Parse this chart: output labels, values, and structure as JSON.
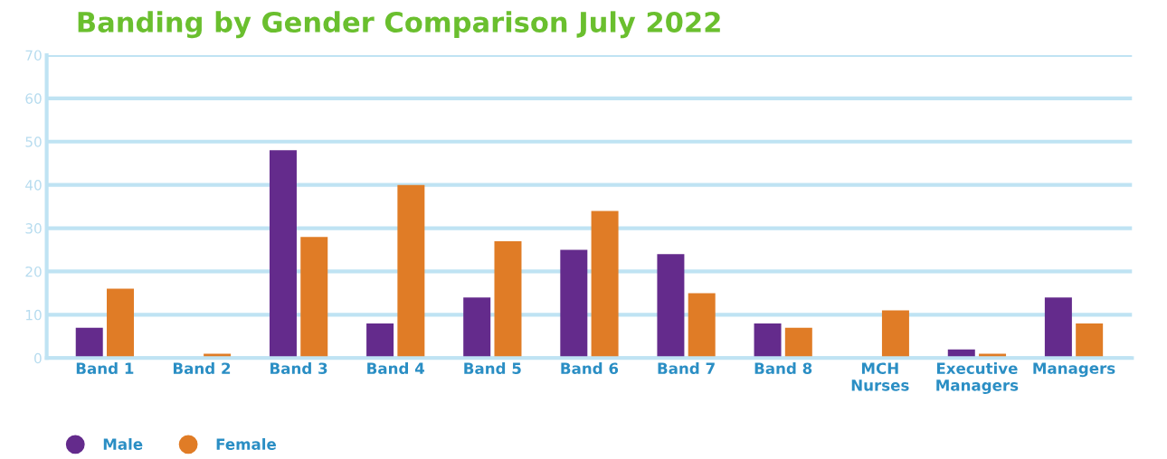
{
  "chart_data": {
    "type": "bar",
    "title": "Banding by Gender Comparison July 2022",
    "categories": [
      "Band 1",
      "Band 2",
      "Band 3",
      "Band 4",
      "Band 5",
      "Band 6",
      "Band 7",
      "Band 8",
      "MCH\nNurses",
      "Executive\nManagers",
      "Managers"
    ],
    "series": [
      {
        "name": "Male",
        "color": "#642b8c",
        "values": [
          7,
          null,
          48,
          8,
          14,
          25,
          24,
          8,
          null,
          2,
          14
        ]
      },
      {
        "name": "Female",
        "color": "#e07c26",
        "values": [
          16,
          1,
          28,
          40,
          27,
          34,
          15,
          7,
          11,
          1,
          8
        ]
      }
    ],
    "ylim": [
      0,
      70
    ],
    "yticks": [
      0,
      10,
      20,
      30,
      40,
      50,
      60,
      70
    ],
    "grid": "y",
    "legend": "bottom left"
  }
}
